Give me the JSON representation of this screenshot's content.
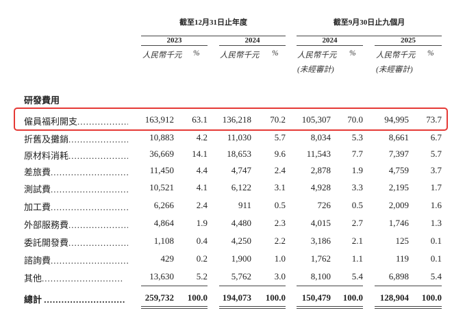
{
  "header": {
    "group_fy": "截至12月31日止年度",
    "group_9m": "截至9月30日止九個月",
    "years": [
      "2023",
      "2024",
      "2024",
      "2025"
    ],
    "unit_rmb": "人民幣千元",
    "unit_pct": "%",
    "unaudited": "(未經審計)"
  },
  "section_title": "研發費用",
  "dots": "............................",
  "rows": [
    {
      "label": "僱員福利開支",
      "values": [
        "163,912",
        "63.1",
        "136,218",
        "70.2",
        "105,307",
        "70.0",
        "94,995",
        "73.7"
      ]
    },
    {
      "label": "折舊及攤銷",
      "values": [
        "10,883",
        "4.2",
        "11,030",
        "5.7",
        "8,034",
        "5.3",
        "8,661",
        "6.7"
      ]
    },
    {
      "label": "原材料消耗",
      "values": [
        "36,669",
        "14.1",
        "18,653",
        "9.6",
        "11,543",
        "7.7",
        "7,397",
        "5.7"
      ]
    },
    {
      "label": "差旅費",
      "values": [
        "11,450",
        "4.4",
        "4,747",
        "2.4",
        "2,878",
        "1.9",
        "4,759",
        "3.7"
      ]
    },
    {
      "label": "測試費",
      "values": [
        "10,521",
        "4.1",
        "6,122",
        "3.1",
        "4,928",
        "3.3",
        "2,195",
        "1.7"
      ]
    },
    {
      "label": "加工費",
      "values": [
        "6,266",
        "2.4",
        "911",
        "0.5",
        "726",
        "0.5",
        "2,009",
        "1.6"
      ]
    },
    {
      "label": "外部服務費",
      "values": [
        "4,864",
        "1.9",
        "4,480",
        "2.3",
        "4,015",
        "2.7",
        "1,746",
        "1.3"
      ]
    },
    {
      "label": "委託開發費",
      "values": [
        "1,108",
        "0.4",
        "4,250",
        "2.2",
        "3,186",
        "2.1",
        "125",
        "0.1"
      ]
    },
    {
      "label": "諮詢費",
      "values": [
        "429",
        "0.2",
        "1,900",
        "1.0",
        "1,762",
        "1.1",
        "119",
        "0.1"
      ]
    },
    {
      "label": "其他",
      "values": [
        "13,630",
        "5.2",
        "5,762",
        "3.0",
        "8,100",
        "5.4",
        "6,898",
        "5.4"
      ]
    }
  ],
  "total": {
    "label": "總計",
    "values": [
      "259,732",
      "100.0",
      "194,073",
      "100.0",
      "150,479",
      "100.0",
      "128,904",
      "100.0"
    ]
  },
  "highlight_color": "#e53935"
}
